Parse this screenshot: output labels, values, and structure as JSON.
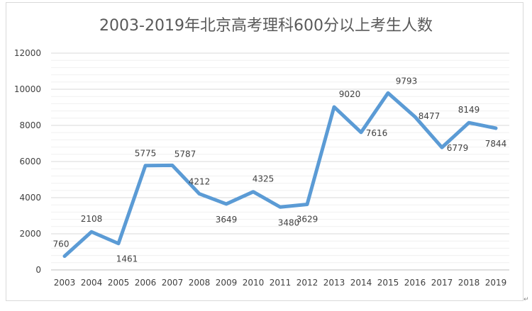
{
  "chart_data": {
    "type": "line",
    "title": "2003-2019年北京高考理科600分以上考生人数",
    "categories": [
      "2003",
      "2004",
      "2005",
      "2006",
      "2007",
      "2008",
      "2009",
      "2010",
      "2011",
      "2012",
      "2013",
      "2014",
      "2015",
      "2016",
      "2017",
      "2018",
      "2019"
    ],
    "values": [
      760,
      2108,
      1461,
      5775,
      5787,
      4212,
      3649,
      4325,
      3480,
      3629,
      9020,
      7616,
      9793,
      8477,
      6779,
      8149,
      7844
    ],
    "ylim": [
      0,
      12000
    ],
    "yticks": [
      "0",
      "2000",
      "4000",
      "6000",
      "8000",
      "10000",
      "12000"
    ],
    "grid": true,
    "line_color": "#5b9bd5",
    "data_labels": [
      "760",
      "2108",
      "1461",
      "5775",
      "5787",
      "4212",
      "3649",
      "4325",
      "3480",
      "3629",
      "9020",
      "7616",
      "9793",
      "8477",
      "6779",
      "8149",
      "7844"
    ]
  },
  "return_mark": "↵"
}
